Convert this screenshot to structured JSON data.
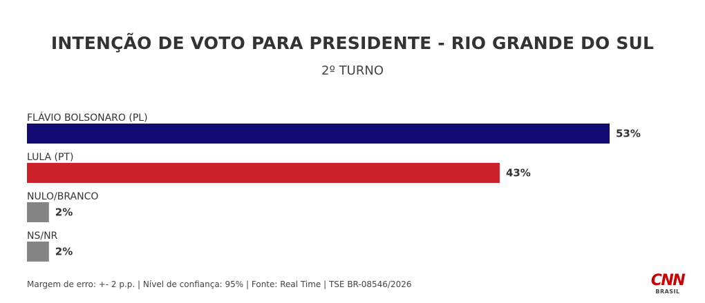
{
  "header": {
    "title": "INTENÇÃO DE VOTO PARA PRESIDENTE - RIO GRANDE DO SUL",
    "subtitle": "2º TURNO"
  },
  "chart_data": {
    "type": "bar",
    "orientation": "horizontal",
    "categories": [
      "FLÁVIO BOLSONARO (PL)",
      "LULA (PT)",
      "NULO/BRANCO",
      "NS/NR"
    ],
    "values": [
      53,
      43,
      2,
      2
    ],
    "value_labels": [
      "53%",
      "43%",
      "2%",
      "2%"
    ],
    "colors": [
      "#120b73",
      "#cc222c",
      "#848484",
      "#848484"
    ],
    "xlim": [
      0,
      53
    ],
    "grid": false
  },
  "footer": {
    "note": "Margem de erro: +- 2 p.p. | Nível de confiança: 95% | Fonte: Real Time | TSE BR-08546/2026"
  },
  "logo": {
    "brand": "CNN",
    "sub": "BRASIL",
    "color": "#cc0000"
  }
}
